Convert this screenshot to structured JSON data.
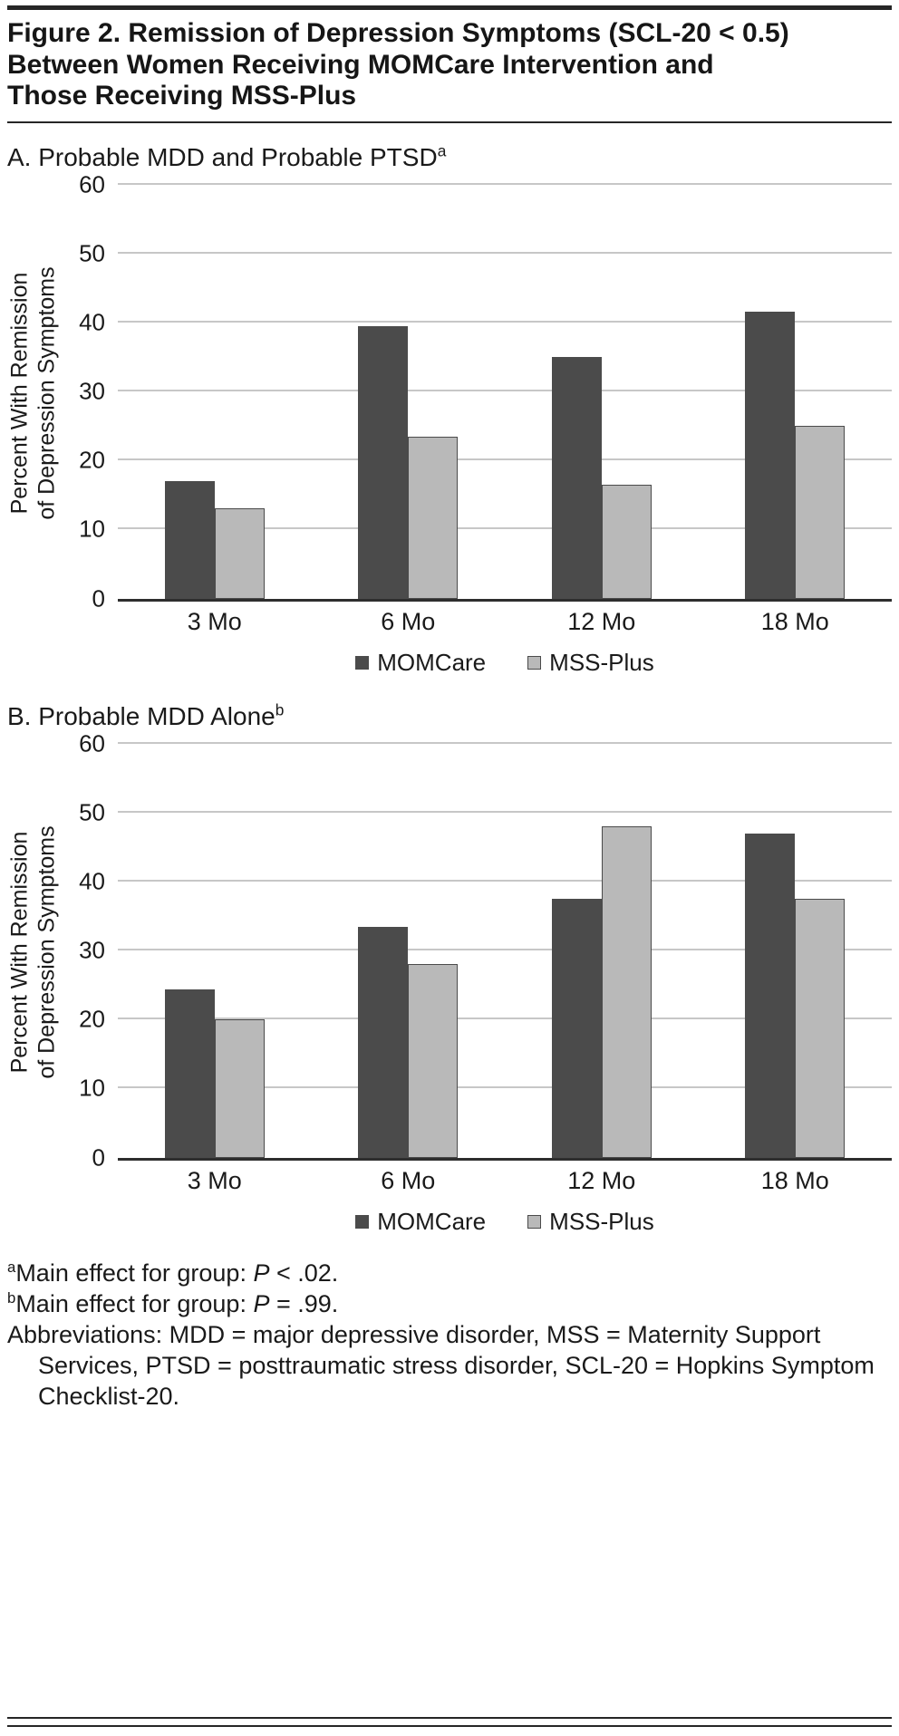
{
  "figure": {
    "title_lines": [
      "Figure 2. Remission of Depression Symptoms (SCL-20 < 0.5)",
      "Between Women Receiving MOMCare Intervention and",
      "Those Receiving MSS-Plus"
    ]
  },
  "chart_data": [
    {
      "type": "bar",
      "title": "A. Probable MDD and Probable PTSD",
      "title_superscript": "a",
      "categories": [
        "3 Mo",
        "6 Mo",
        "12 Mo",
        "18 Mo"
      ],
      "series": [
        {
          "name": "MOMCare",
          "color": "#4b4b4b",
          "values": [
            17,
            39.5,
            35,
            41.5
          ]
        },
        {
          "name": "MSS-Plus",
          "color": "#b9b9b9",
          "border_color": "#4b4b4b",
          "values": [
            13,
            23.5,
            16.5,
            25
          ]
        }
      ],
      "ylabel_lines": [
        "Percent With Remission",
        "of Depression Symptoms"
      ],
      "ylim": [
        0,
        60
      ],
      "ytick_step": 10,
      "grid": true,
      "legend_position": "bottom"
    },
    {
      "type": "bar",
      "title": "B. Probable MDD Alone",
      "title_superscript": "b",
      "categories": [
        "3 Mo",
        "6 Mo",
        "12 Mo",
        "18 Mo"
      ],
      "series": [
        {
          "name": "MOMCare",
          "color": "#4b4b4b",
          "values": [
            24.3,
            33.4,
            37.5,
            47
          ]
        },
        {
          "name": "MSS-Plus",
          "color": "#b9b9b9",
          "border_color": "#4b4b4b",
          "values": [
            20,
            28,
            48,
            37.5
          ]
        }
      ],
      "ylabel_lines": [
        "Percent With Remission",
        "of Depression Symptoms"
      ],
      "ylim": [
        0,
        60
      ],
      "ytick_step": 10,
      "grid": true,
      "legend_position": "bottom"
    }
  ],
  "footnotes": {
    "a_marker": "a",
    "a_text": "Main effect for group: ",
    "a_stat": "P",
    "a_value": " < .02.",
    "b_marker": "b",
    "b_text": "Main effect for group: ",
    "b_stat": "P",
    "b_value": " = .99.",
    "abbreviations": "Abbreviations: MDD = major depressive disorder, MSS = Maternity Support Services, PTSD = posttraumatic stress disorder, SCL-20 = Hopkins Symptom Checklist-20."
  },
  "colors": {
    "momcare": "#4b4b4b",
    "mss_plus": "#b9b9b9",
    "gridline": "#c7c7c7",
    "axis_line": "#2e2e2e",
    "rule": "#262626",
    "text": "#1a1a1a"
  }
}
